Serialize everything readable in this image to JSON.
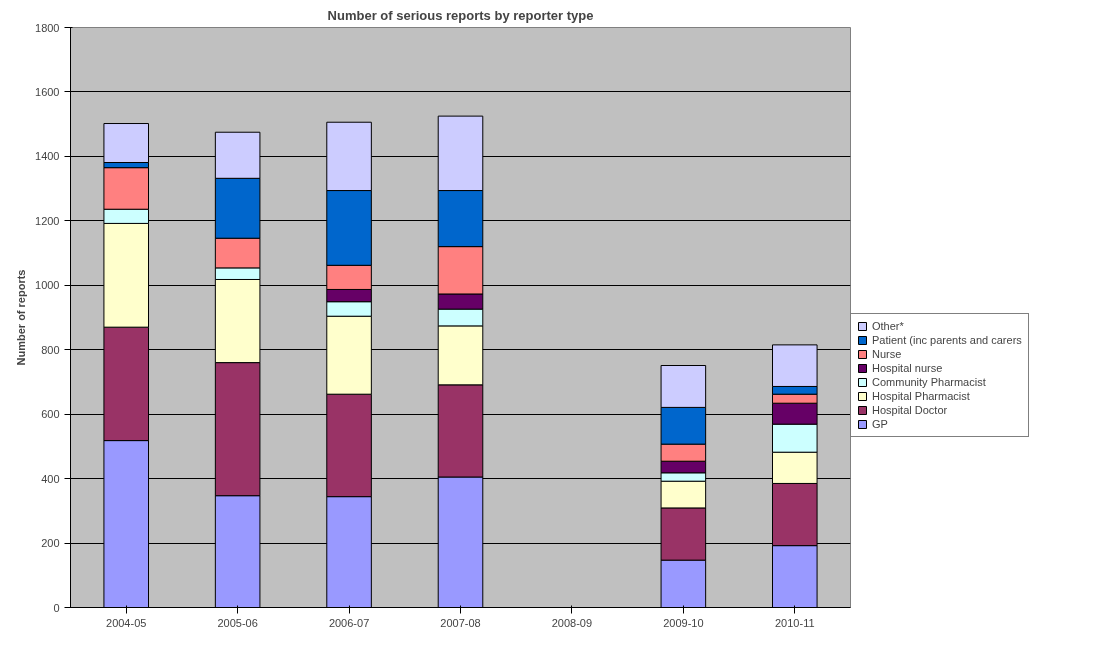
{
  "chart_data": {
    "type": "bar",
    "stacked": true,
    "title": "Number of serious reports by reporter type",
    "ylabel": "Number of reports",
    "categories": [
      "2004-05",
      "2005-06",
      "2006-07",
      "2007-08",
      "2008-09",
      "2009-10",
      "2010-11"
    ],
    "ylim": [
      0,
      1800
    ],
    "yticks": [
      0,
      200,
      400,
      600,
      800,
      1000,
      1200,
      1400,
      1600,
      1800
    ],
    "grid": "y",
    "legend": "right",
    "series": [
      {
        "name": "GP",
        "color": "#9999ff",
        "values": [
          518,
          347,
          344,
          405,
          null,
          147,
          192
        ]
      },
      {
        "name": "Hospital Doctor",
        "color": "#993366",
        "values": [
          352,
          413,
          318,
          286,
          null,
          162,
          193
        ]
      },
      {
        "name": "Hospital Pharmacist",
        "color": "#ffffcc",
        "values": [
          322,
          258,
          242,
          183,
          null,
          83,
          97
        ]
      },
      {
        "name": "Community Pharmacist",
        "color": "#ccffff",
        "values": [
          44,
          36,
          45,
          52,
          null,
          26,
          87
        ]
      },
      {
        "name": "Hospital nurse",
        "color": "#660066",
        "values": [
          0,
          0,
          38,
          47,
          null,
          36,
          65
        ]
      },
      {
        "name": "Nurse",
        "color": "#ff8080",
        "values": [
          129,
          92,
          75,
          147,
          null,
          53,
          28
        ]
      },
      {
        "name": "Patient (inc parents and carers",
        "color": "#0066cc",
        "values": [
          16,
          186,
          232,
          174,
          null,
          114,
          24
        ]
      },
      {
        "name": "Other*",
        "color": "#ccccff",
        "values": [
          121,
          143,
          212,
          231,
          null,
          130,
          129
        ]
      }
    ]
  }
}
